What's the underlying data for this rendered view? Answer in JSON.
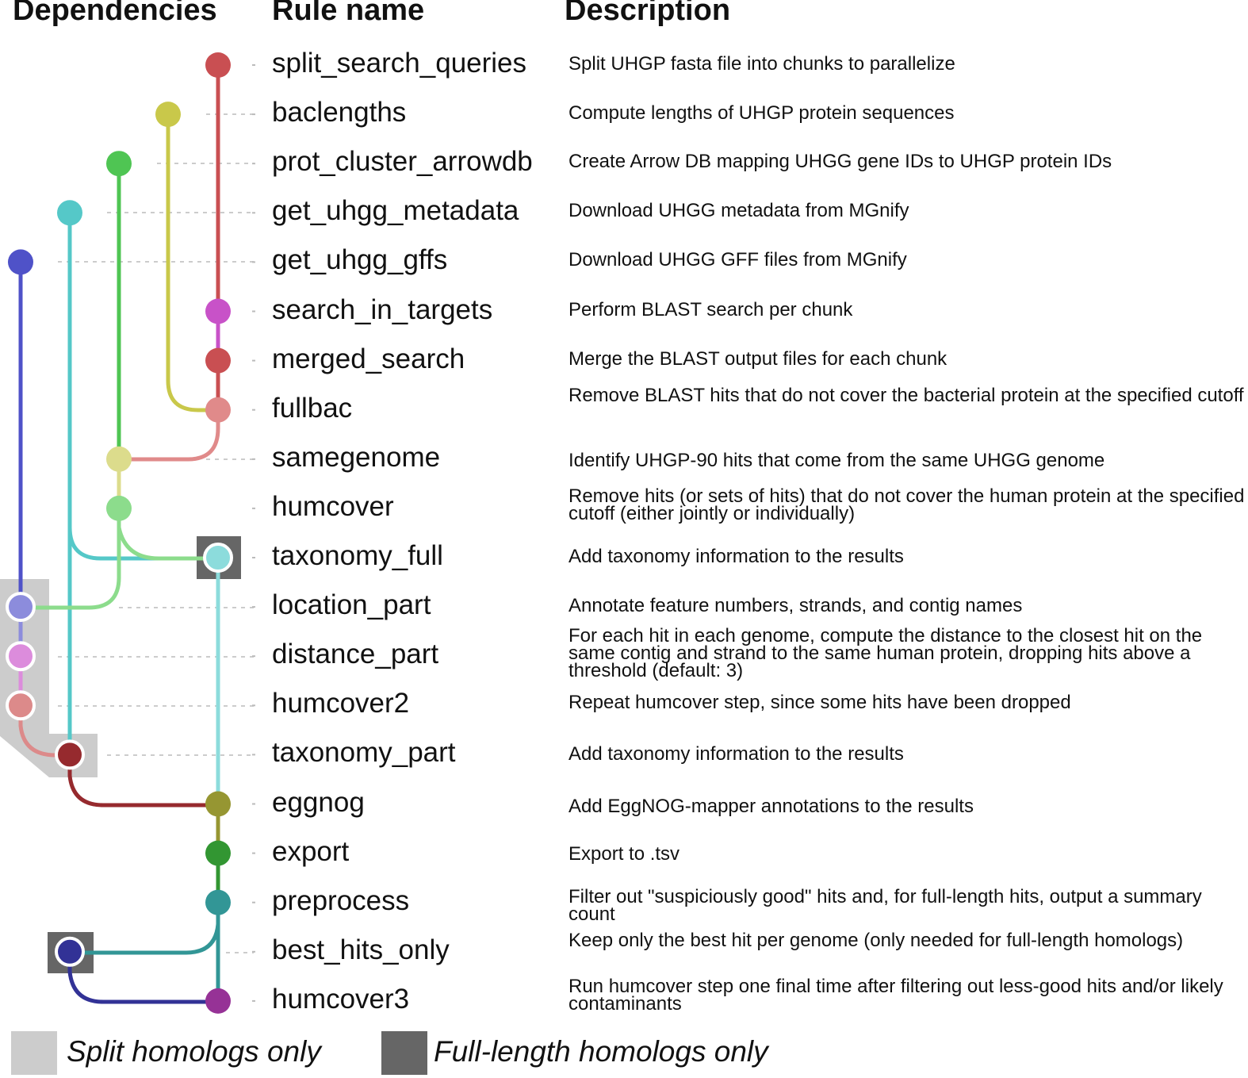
{
  "headers": {
    "dependencies": "Dependencies",
    "rule_name": "Rule name",
    "description": "Description"
  },
  "rules": [
    {
      "name": "split_search_queries",
      "desc": "Split UHGP fasta file into chunks to parallelize",
      "color": "#c94f52"
    },
    {
      "name": "baclengths",
      "desc": "Compute lengths of UHGP protein sequences",
      "color": "#c9c84a"
    },
    {
      "name": "prot_cluster_arrowdb",
      "desc": "Create Arrow DB mapping UHGG gene IDs to UHGP protein IDs",
      "color": "#4fc553"
    },
    {
      "name": "get_uhgg_metadata",
      "desc": "Download UHGG metadata from MGnify",
      "color": "#55c8c8"
    },
    {
      "name": "get_uhgg_gffs",
      "desc": "Download UHGG GFF files from MGnify",
      "color": "#4f52c8"
    },
    {
      "name": "search_in_targets",
      "desc": "Perform BLAST search per chunk",
      "color": "#c852c8"
    },
    {
      "name": "merged_search",
      "desc": "Merge the BLAST output files for each chunk",
      "color": "#c94f52"
    },
    {
      "name": "fullbac",
      "desc": "Remove BLAST hits that do not cover the bacterial protein at the specified cutoff",
      "color": "#e08a8a"
    },
    {
      "name": "samegenome",
      "desc": "Identify UHGP-90 hits that come from the same UHGG genome",
      "color": "#dcdc8c"
    },
    {
      "name": "humcover",
      "desc": "Remove hits (or sets of hits) that do not cover the human protein at the specified cutoff (either jointly or individually)",
      "color": "#8cdc8c"
    },
    {
      "name": "taxonomy_full",
      "desc": "Add taxonomy information to the results",
      "color": "#8cdcdc"
    },
    {
      "name": "location_part",
      "desc": "Annotate feature numbers, strands, and contig names",
      "color": "#8c8cdc"
    },
    {
      "name": "distance_part",
      "desc": "For each hit in each genome, compute the distance to the closest hit on the same contig and strand to the same human protein, dropping hits above a threshold (default: 3)",
      "color": "#dc8cdc"
    },
    {
      "name": "humcover2",
      "desc": "Repeat humcover step, since some hits have been dropped",
      "color": "#dc8a8a"
    },
    {
      "name": "taxonomy_part",
      "desc": "Add taxonomy information to the results",
      "color": "#962a2e"
    },
    {
      "name": "eggnog",
      "desc": "Add EggNOG-mapper annotations to the results",
      "color": "#969632"
    },
    {
      "name": "export",
      "desc": "Export to .tsv",
      "color": "#329632"
    },
    {
      "name": "preprocess",
      "desc": "Filter out \"suspiciously good\" hits and, for full-length hits, output a summary count",
      "color": "#329696"
    },
    {
      "name": "best_hits_only",
      "desc": "Keep only the best hit per genome (only needed for full-length homologs)",
      "color": "#323296"
    },
    {
      "name": "humcover3",
      "desc": "Run humcover step one final time after filtering out less-good hits and/or likely contaminants",
      "color": "#963296"
    }
  ],
  "legend": {
    "split": {
      "label": "Split homologs only",
      "color": "#cccccc"
    },
    "full": {
      "label": "Full-length homologs only",
      "color": "#666666"
    }
  }
}
